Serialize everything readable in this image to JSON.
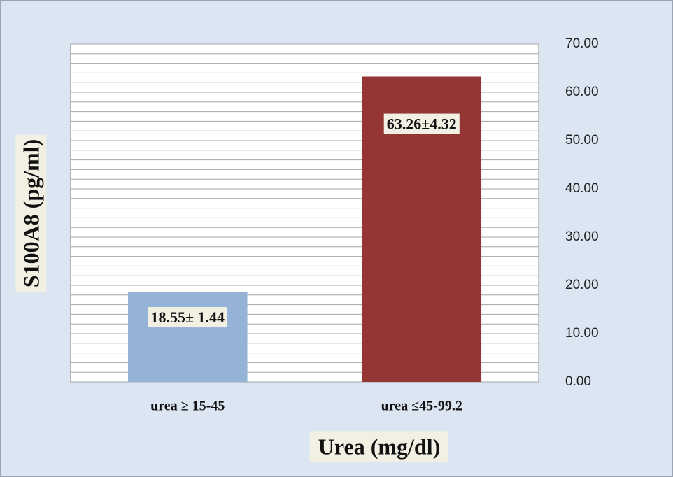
{
  "chart_data": {
    "type": "bar",
    "categories": [
      "urea ≥ 15-45",
      "urea ≤45-99.2"
    ],
    "values": [
      18.55,
      63.26
    ],
    "value_labels": [
      "18.55± 1.44",
      "63.26±4.32"
    ],
    "colors": [
      "#95b3d7",
      "#943634"
    ],
    "x_label": "Urea (mg/dl)",
    "y_label": "S100A8 (pg/ml)",
    "ylim": [
      0,
      70
    ],
    "yticks": [
      {
        "value": 0,
        "label": "0.00"
      },
      {
        "value": 10,
        "label": "10.00"
      },
      {
        "value": 20,
        "label": "20.00"
      },
      {
        "value": 30,
        "label": "30.00"
      },
      {
        "value": 40,
        "label": "40.00"
      },
      {
        "value": 50,
        "label": "50.00"
      },
      {
        "value": 60,
        "label": "60.00"
      },
      {
        "value": 70,
        "label": "70.00"
      }
    ],
    "minor_gridlines": [
      2,
      4,
      6,
      8,
      12,
      14,
      16,
      18,
      22,
      24,
      26,
      28,
      32,
      34,
      36,
      38,
      42,
      44,
      46,
      48,
      52,
      54,
      56,
      58,
      62,
      64,
      66,
      68
    ],
    "y_axis_side": "right",
    "grid": true
  }
}
